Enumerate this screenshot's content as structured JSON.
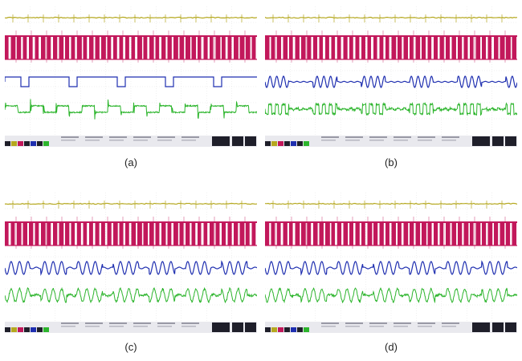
{
  "panels": [
    {
      "id": "a",
      "caption": "(a)"
    },
    {
      "id": "b",
      "caption": "(b)"
    },
    {
      "id": "c",
      "caption": "(c)"
    },
    {
      "id": "d",
      "caption": "(d)"
    }
  ],
  "colors": {
    "ch1": "#b5a81f",
    "ch2": "#c2185b",
    "ch3": "#1f2fb0",
    "ch4": "#2db52d",
    "footer_bg": "#1f1f2a",
    "grid": "#cfcfcf"
  },
  "waveforms": {
    "a": {
      "ch3": "square",
      "ch4": "spiky"
    },
    "b": {
      "ch3": "sine-burst",
      "ch4": "spiky-burst"
    },
    "c": {
      "ch3": "sine",
      "ch4": "sine-noisy"
    },
    "d": {
      "ch3": "sine",
      "ch4": "sine-noisy"
    }
  }
}
